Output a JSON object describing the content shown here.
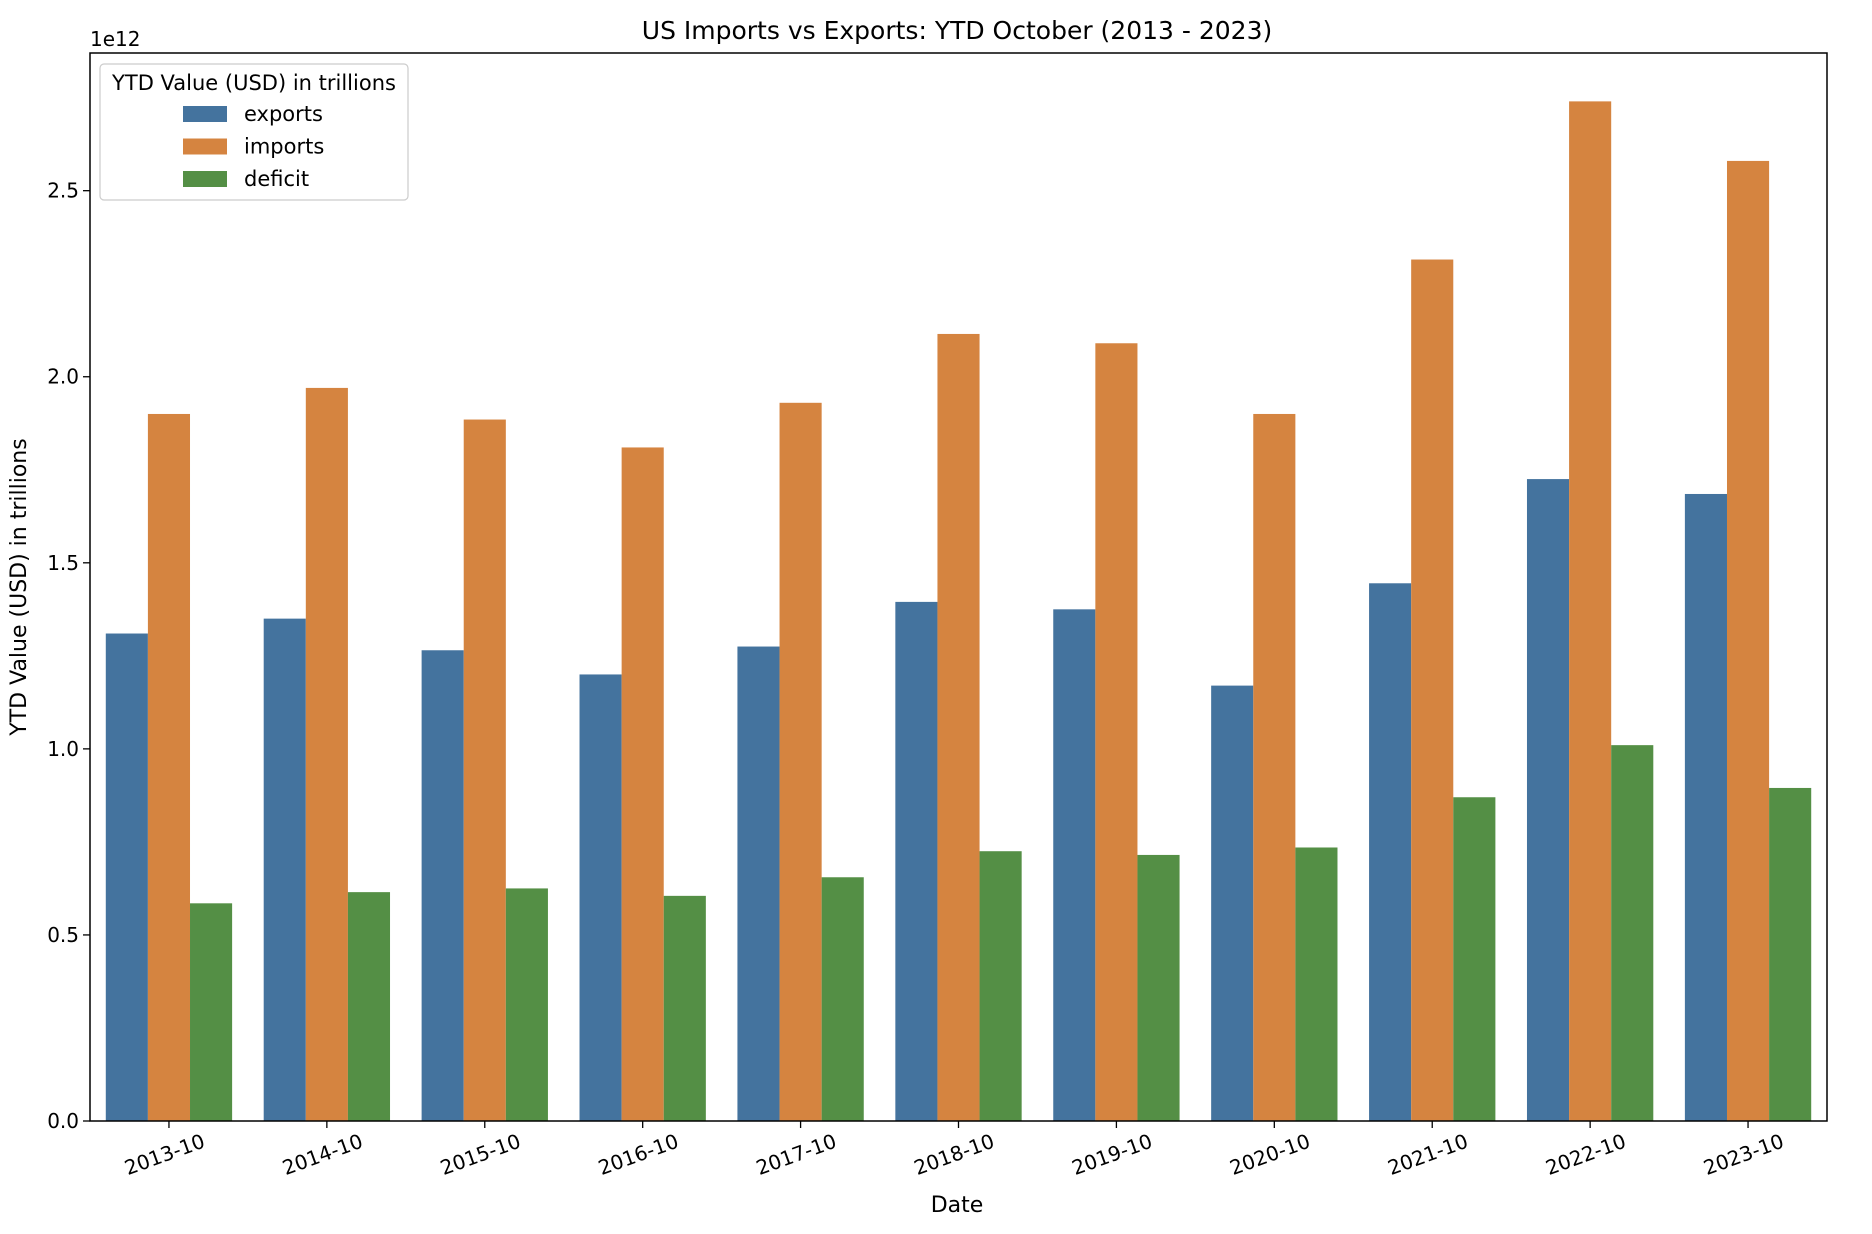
{
  "chart_data": {
    "type": "bar",
    "title": "US Imports vs Exports: YTD October (2013 - 2023)",
    "xlabel": "Date",
    "ylabel": "YTD Value (USD) in trillions",
    "offset_label": "1e12",
    "ylim": [
      0,
      2.87
    ],
    "yticks": [
      "0.0",
      "0.5",
      "1.0",
      "1.5",
      "2.0",
      "2.5"
    ],
    "grid": false,
    "legend": {
      "title": "YTD Value (USD) in trillions",
      "placement": "top-left"
    },
    "categories": [
      "2013-10",
      "2014-10",
      "2015-10",
      "2016-10",
      "2017-10",
      "2018-10",
      "2019-10",
      "2020-10",
      "2021-10",
      "2022-10",
      "2023-10"
    ],
    "series": [
      {
        "name": "exports",
        "color": "#44739e",
        "values": [
          1.31,
          1.35,
          1.265,
          1.2,
          1.275,
          1.395,
          1.375,
          1.17,
          1.445,
          1.725,
          1.685
        ]
      },
      {
        "name": "imports",
        "color": "#d58440",
        "values": [
          1.9,
          1.97,
          1.885,
          1.81,
          1.93,
          2.115,
          2.09,
          1.9,
          2.315,
          2.74,
          2.58
        ]
      },
      {
        "name": "deficit",
        "color": "#548f45",
        "values": [
          0.585,
          0.615,
          0.625,
          0.605,
          0.655,
          0.725,
          0.715,
          0.735,
          0.87,
          1.01,
          0.895
        ]
      }
    ]
  }
}
